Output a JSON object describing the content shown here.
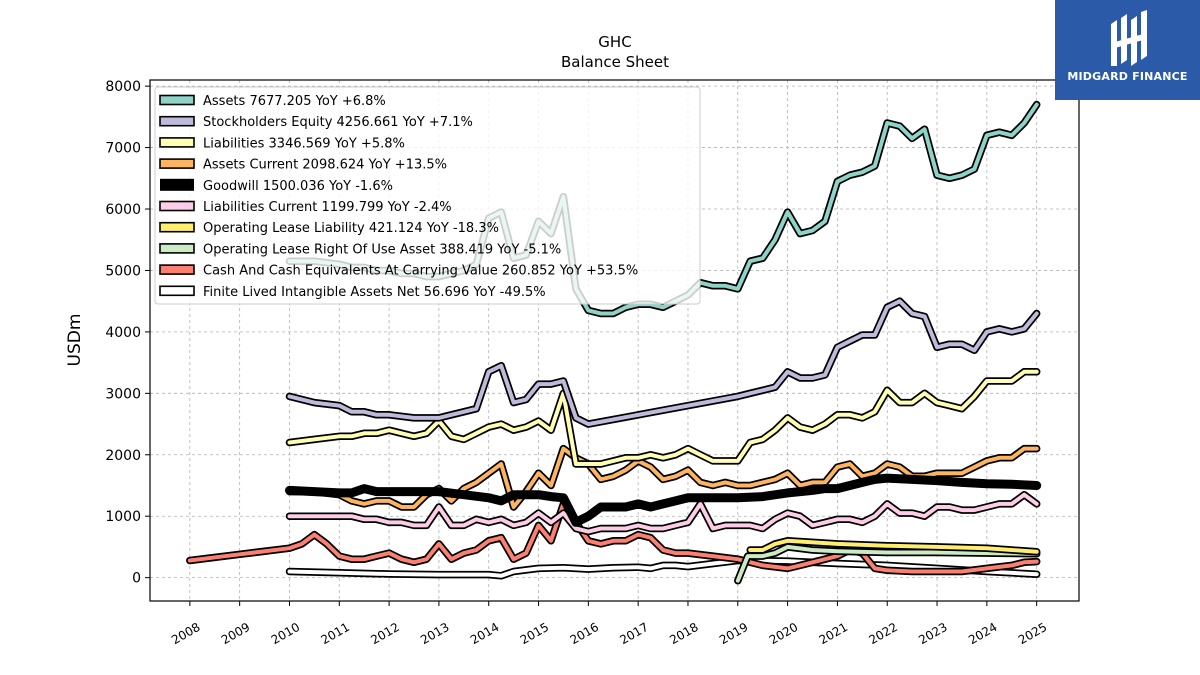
{
  "brand": {
    "name": "MIDGARD FINANCE",
    "color": "#2b5aa8",
    "icon": "midgard-logo-icon"
  },
  "chart_data": {
    "type": "line",
    "title": "GHC",
    "subtitle": "Balance  Sheet",
    "xlabel": "",
    "ylabel": "USDm",
    "xlim": [
      2007.2,
      2025.85
    ],
    "ylim": [
      -380,
      8100
    ],
    "yticks": [
      0,
      1000,
      2000,
      3000,
      4000,
      5000,
      6000,
      7000,
      8000
    ],
    "xticks": [
      "2008",
      "2009",
      "2010",
      "2011",
      "2012",
      "2013",
      "2014",
      "2015",
      "2016",
      "2017",
      "2018",
      "2019",
      "2020",
      "2021",
      "2022",
      "2023",
      "2024",
      "2025"
    ],
    "grid": true,
    "legend_position": "top-left",
    "series": [
      {
        "name": "Assets  7677.205 YoY +6.8%",
        "color": "#8dd3c7",
        "width": 4,
        "x": [
          2010.0,
          2010.5,
          2011.0,
          2011.25,
          2011.5,
          2011.75,
          2012.0,
          2012.25,
          2012.5,
          2012.75,
          2013.0,
          2013.25,
          2013.5,
          2013.75,
          2014.0,
          2014.25,
          2014.5,
          2014.75,
          2015.0,
          2015.25,
          2015.5,
          2015.75,
          2016.0,
          2016.25,
          2016.5,
          2016.75,
          2017.0,
          2017.25,
          2017.5,
          2017.75,
          2018.0,
          2018.25,
          2018.5,
          2018.75,
          2019.0,
          2019.25,
          2019.5,
          2019.75,
          2020.0,
          2020.25,
          2020.5,
          2020.75,
          2021.0,
          2021.25,
          2021.5,
          2021.75,
          2022.0,
          2022.25,
          2022.5,
          2022.75,
          2023.0,
          2023.25,
          2023.5,
          2023.75,
          2024.0,
          2024.25,
          2024.5,
          2024.75,
          2025.0
        ],
        "y": [
          5150,
          5150,
          5100,
          5050,
          5050,
          5000,
          5000,
          4950,
          4950,
          4900,
          4900,
          4950,
          5000,
          5100,
          5850,
          5950,
          5200,
          5250,
          5800,
          5600,
          6200,
          4700,
          4350,
          4300,
          4300,
          4400,
          4450,
          4450,
          4400,
          4500,
          4600,
          4800,
          4750,
          4750,
          4700,
          5150,
          5200,
          5500,
          5950,
          5600,
          5650,
          5800,
          6450,
          6550,
          6600,
          6700,
          7400,
          7350,
          7150,
          7300,
          6550,
          6500,
          6550,
          6650,
          7200,
          7250,
          7200,
          7400,
          7700
        ]
      },
      {
        "name": "Stockholders Equity  4256.661 YoY +7.1%",
        "color": "#bebada",
        "width": 4,
        "x": [
          2010.0,
          2010.5,
          2011.0,
          2011.25,
          2011.5,
          2011.75,
          2012.0,
          2012.5,
          2013.0,
          2013.25,
          2013.5,
          2013.75,
          2014.0,
          2014.25,
          2014.5,
          2014.75,
          2015.0,
          2015.25,
          2015.5,
          2015.75,
          2016.0,
          2019.0,
          2019.25,
          2019.5,
          2019.75,
          2020.0,
          2020.25,
          2020.5,
          2020.75,
          2021.0,
          2021.25,
          2021.5,
          2021.75,
          2022.0,
          2022.25,
          2022.5,
          2022.75,
          2023.0,
          2023.25,
          2023.5,
          2023.75,
          2024.0,
          2024.25,
          2024.5,
          2024.75,
          2025.0
        ],
        "y": [
          2950,
          2850,
          2800,
          2700,
          2700,
          2650,
          2650,
          2600,
          2600,
          2650,
          2700,
          2750,
          3350,
          3450,
          2850,
          2900,
          3150,
          3150,
          3200,
          2600,
          2500,
          2950,
          3000,
          3050,
          3100,
          3350,
          3250,
          3250,
          3300,
          3750,
          3850,
          3950,
          3950,
          4400,
          4500,
          4300,
          4250,
          3750,
          3800,
          3800,
          3700,
          4000,
          4050,
          4000,
          4050,
          4300
        ]
      },
      {
        "name": "Liabilities  3346.569 YoY +5.8%",
        "color": "#ffffb3",
        "width": 4,
        "x": [
          2010.0,
          2010.5,
          2011.0,
          2011.25,
          2011.5,
          2011.75,
          2012.0,
          2012.25,
          2012.5,
          2012.75,
          2013.0,
          2013.25,
          2013.5,
          2013.75,
          2014.0,
          2014.25,
          2014.5,
          2014.75,
          2015.0,
          2015.25,
          2015.5,
          2015.75,
          2016.0,
          2016.25,
          2016.5,
          2016.75,
          2017.0,
          2017.25,
          2017.5,
          2017.75,
          2018.0,
          2018.25,
          2018.5,
          2018.75,
          2019.0,
          2019.25,
          2019.5,
          2019.75,
          2020.0,
          2020.25,
          2020.5,
          2020.75,
          2021.0,
          2021.25,
          2021.5,
          2021.75,
          2022.0,
          2022.25,
          2022.5,
          2022.75,
          2023.0,
          2023.25,
          2023.5,
          2023.75,
          2024.0,
          2024.25,
          2024.5,
          2024.75,
          2025.0
        ],
        "y": [
          2200,
          2250,
          2300,
          2300,
          2350,
          2350,
          2400,
          2350,
          2300,
          2350,
          2550,
          2300,
          2250,
          2350,
          2450,
          2500,
          2400,
          2450,
          2550,
          2400,
          3000,
          1850,
          1850,
          1850,
          1900,
          1950,
          1950,
          2000,
          1950,
          2000,
          2100,
          2000,
          1900,
          1900,
          1900,
          2200,
          2250,
          2400,
          2600,
          2450,
          2400,
          2500,
          2650,
          2650,
          2600,
          2700,
          3050,
          2850,
          2850,
          3000,
          2850,
          2800,
          2750,
          2950,
          3200,
          3200,
          3200,
          3350,
          3350
        ]
      },
      {
        "name": "Assets Current  2098.624 YoY +13.5%",
        "color": "#fdb462",
        "width": 4,
        "x": [
          2010.0,
          2010.5,
          2011.0,
          2011.25,
          2011.5,
          2011.75,
          2012.0,
          2012.25,
          2012.5,
          2012.75,
          2013.0,
          2013.25,
          2013.5,
          2013.75,
          2014.0,
          2014.25,
          2014.5,
          2014.75,
          2015.0,
          2015.25,
          2015.5,
          2015.75,
          2016.0,
          2016.25,
          2016.5,
          2016.75,
          2017.0,
          2017.25,
          2017.5,
          2017.75,
          2018.0,
          2018.25,
          2018.5,
          2018.75,
          2019.0,
          2019.25,
          2019.5,
          2019.75,
          2020.0,
          2020.25,
          2020.5,
          2020.75,
          2021.0,
          2021.25,
          2021.5,
          2021.75,
          2022.0,
          2022.25,
          2022.5,
          2022.75,
          2023.0,
          2023.25,
          2023.5,
          2023.75,
          2024.0,
          2024.25,
          2024.5,
          2024.75,
          2025.0
        ],
        "y": [
          1400,
          1400,
          1350,
          1250,
          1200,
          1250,
          1250,
          1150,
          1150,
          1350,
          1450,
          1250,
          1450,
          1550,
          1700,
          1850,
          1150,
          1400,
          1700,
          1500,
          2100,
          1950,
          1850,
          1600,
          1650,
          1750,
          1900,
          1800,
          1600,
          1650,
          1750,
          1550,
          1500,
          1550,
          1500,
          1500,
          1550,
          1600,
          1700,
          1500,
          1550,
          1550,
          1800,
          1850,
          1650,
          1700,
          1850,
          1800,
          1650,
          1650,
          1700,
          1700,
          1700,
          1800,
          1900,
          1950,
          1950,
          2100,
          2100
        ]
      },
      {
        "name": "Goodwill  1500.036 YoY -1.6%",
        "color": "#000000",
        "width": 9,
        "x": [
          2010.0,
          2010.5,
          2011.0,
          2011.25,
          2011.5,
          2011.75,
          2012.0,
          2012.5,
          2013.0,
          2013.5,
          2014.0,
          2014.25,
          2014.5,
          2015.0,
          2015.25,
          2015.5,
          2015.75,
          2016.0,
          2016.25,
          2016.5,
          2016.75,
          2017.0,
          2017.25,
          2017.5,
          2017.75,
          2018.0,
          2018.5,
          2019.0,
          2019.5,
          2020.0,
          2020.25,
          2020.5,
          2020.75,
          2021.0,
          2021.25,
          2021.5,
          2021.75,
          2022.0,
          2022.5,
          2023.0,
          2023.5,
          2024.0,
          2024.5,
          2025.0
        ],
        "y": [
          1420,
          1400,
          1380,
          1380,
          1450,
          1400,
          1400,
          1400,
          1400,
          1350,
          1300,
          1250,
          1350,
          1350,
          1320,
          1300,
          900,
          1000,
          1150,
          1150,
          1150,
          1200,
          1150,
          1200,
          1250,
          1300,
          1300,
          1300,
          1320,
          1380,
          1400,
          1420,
          1450,
          1450,
          1500,
          1550,
          1600,
          1620,
          1600,
          1580,
          1550,
          1530,
          1520,
          1500
        ]
      },
      {
        "name": "Liabilities Current  1199.799 YoY -2.4%",
        "color": "#fccde5",
        "width": 4,
        "x": [
          2010.0,
          2010.5,
          2011.0,
          2011.25,
          2011.5,
          2011.75,
          2012.0,
          2012.25,
          2012.5,
          2012.75,
          2013.0,
          2013.25,
          2013.5,
          2013.75,
          2014.0,
          2014.25,
          2014.5,
          2014.75,
          2015.0,
          2015.25,
          2015.5,
          2015.75,
          2016.0,
          2016.25,
          2016.5,
          2016.75,
          2017.0,
          2017.25,
          2017.5,
          2017.75,
          2018.0,
          2018.25,
          2018.5,
          2018.75,
          2019.0,
          2019.25,
          2019.5,
          2019.75,
          2020.0,
          2020.25,
          2020.5,
          2020.75,
          2021.0,
          2021.25,
          2021.5,
          2021.75,
          2022.0,
          2022.25,
          2022.5,
          2022.75,
          2023.0,
          2023.25,
          2023.5,
          2023.75,
          2024.0,
          2024.25,
          2024.5,
          2024.75,
          2025.0
        ],
        "y": [
          1000,
          1000,
          1000,
          1000,
          950,
          950,
          900,
          900,
          850,
          850,
          1150,
          850,
          850,
          950,
          900,
          950,
          850,
          900,
          1050,
          900,
          1050,
          800,
          750,
          800,
          800,
          800,
          850,
          800,
          800,
          850,
          900,
          1200,
          800,
          850,
          850,
          850,
          800,
          950,
          1050,
          1000,
          850,
          900,
          950,
          950,
          900,
          1000,
          1200,
          1050,
          1050,
          1000,
          1150,
          1150,
          1100,
          1100,
          1150,
          1200,
          1200,
          1350,
          1200
        ]
      },
      {
        "name": "Operating Lease Liability  421.124 YoY -18.3%",
        "color": "#ffed6f",
        "width": 4,
        "x": [
          2019.25,
          2019.5,
          2019.75,
          2020.0,
          2021.0,
          2022.0,
          2023.0,
          2024.0,
          2025.0
        ],
        "y": [
          450,
          450,
          550,
          600,
          550,
          520,
          500,
          480,
          421
        ]
      },
      {
        "name": "Operating Lease Right Of Use Asset  388.419 YoY -5.1%",
        "color": "#ccebc5",
        "width": 4,
        "x": [
          2019.0,
          2019.2,
          2019.5,
          2019.75,
          2020.0,
          2020.5,
          2021.0,
          2022.0,
          2023.0,
          2024.0,
          2025.0
        ],
        "y": [
          -50,
          350,
          350,
          400,
          500,
          450,
          430,
          410,
          410,
          400,
          388
        ]
      },
      {
        "name": "Cash And Cash Equivalents At Carrying Value  260.852 YoY +53.5%",
        "color": "#fb8072",
        "width": 4,
        "x": [
          2008.0,
          2009.0,
          2010.0,
          2010.25,
          2010.5,
          2010.75,
          2011.0,
          2011.25,
          2011.5,
          2011.75,
          2012.0,
          2012.25,
          2012.5,
          2012.75,
          2013.0,
          2013.25,
          2013.5,
          2013.75,
          2014.0,
          2014.25,
          2014.5,
          2014.75,
          2015.0,
          2015.25,
          2015.5,
          2015.75,
          2016.0,
          2016.25,
          2016.5,
          2016.75,
          2017.0,
          2017.25,
          2017.5,
          2017.75,
          2018.0,
          2018.5,
          2019.0,
          2019.5,
          2020.0,
          2020.25,
          2020.5,
          2020.75,
          2021.0,
          2021.25,
          2021.5,
          2021.75,
          2022.0,
          2022.5,
          2023.0,
          2023.5,
          2024.0,
          2024.5,
          2024.75,
          2025.0
        ],
        "y": [
          280,
          380,
          480,
          550,
          700,
          550,
          350,
          300,
          300,
          350,
          400,
          300,
          250,
          300,
          550,
          300,
          400,
          450,
          600,
          650,
          300,
          400,
          850,
          600,
          1200,
          900,
          600,
          550,
          600,
          600,
          700,
          650,
          450,
          400,
          400,
          350,
          300,
          200,
          150,
          200,
          250,
          300,
          350,
          450,
          400,
          150,
          120,
          100,
          100,
          100,
          150,
          200,
          250,
          261
        ]
      },
      {
        "name": "Finite Lived Intangible Assets Net  56.696 YoY -49.5%",
        "color": "#ffffff",
        "width": 4,
        "x": [
          2010.0,
          2011.0,
          2012.0,
          2013.0,
          2014.0,
          2014.25,
          2014.5,
          2015.0,
          2015.5,
          2016.0,
          2016.5,
          2017.0,
          2017.25,
          2017.5,
          2017.75,
          2018.0,
          2019.0,
          2020.0,
          2021.0,
          2022.0,
          2023.0,
          2024.0,
          2025.0
        ],
        "y": [
          100,
          80,
          60,
          50,
          50,
          30,
          100,
          150,
          160,
          140,
          160,
          170,
          150,
          200,
          200,
          180,
          280,
          270,
          230,
          200,
          150,
          100,
          57
        ]
      }
    ]
  }
}
